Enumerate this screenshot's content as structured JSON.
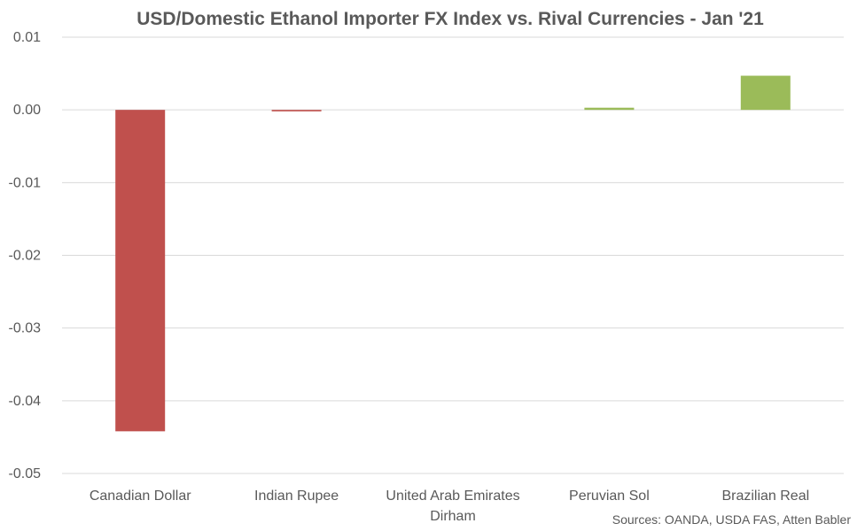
{
  "chart_data": {
    "type": "bar",
    "title": "USD/Domestic Ethanol Importer FX Index vs. Rival Currencies - Jan '21",
    "categories": [
      [
        "Canadian Dollar"
      ],
      [
        "Indian Rupee"
      ],
      [
        "United Arab Emirates",
        "Dirham"
      ],
      [
        "Peruvian Sol"
      ],
      [
        "Brazilian Real"
      ]
    ],
    "values": [
      -0.0442,
      -0.0002,
      0.0,
      0.0003,
      0.0047
    ],
    "ylim": [
      -0.05,
      0.01
    ],
    "yticks": [
      0.01,
      0.0,
      -0.01,
      -0.02,
      -0.03,
      -0.04,
      -0.05
    ],
    "ytick_labels": [
      "0.01",
      "0.00",
      "-0.01",
      "-0.02",
      "-0.03",
      "-0.04",
      "-0.05"
    ],
    "grid": true,
    "colors": {
      "negative": "#c0504d",
      "positive": "#9bbb59",
      "grid": "#d9d9d9",
      "text": "#595959"
    },
    "source_note": "Sources: OANDA, USDA FAS, Atten Babler"
  }
}
